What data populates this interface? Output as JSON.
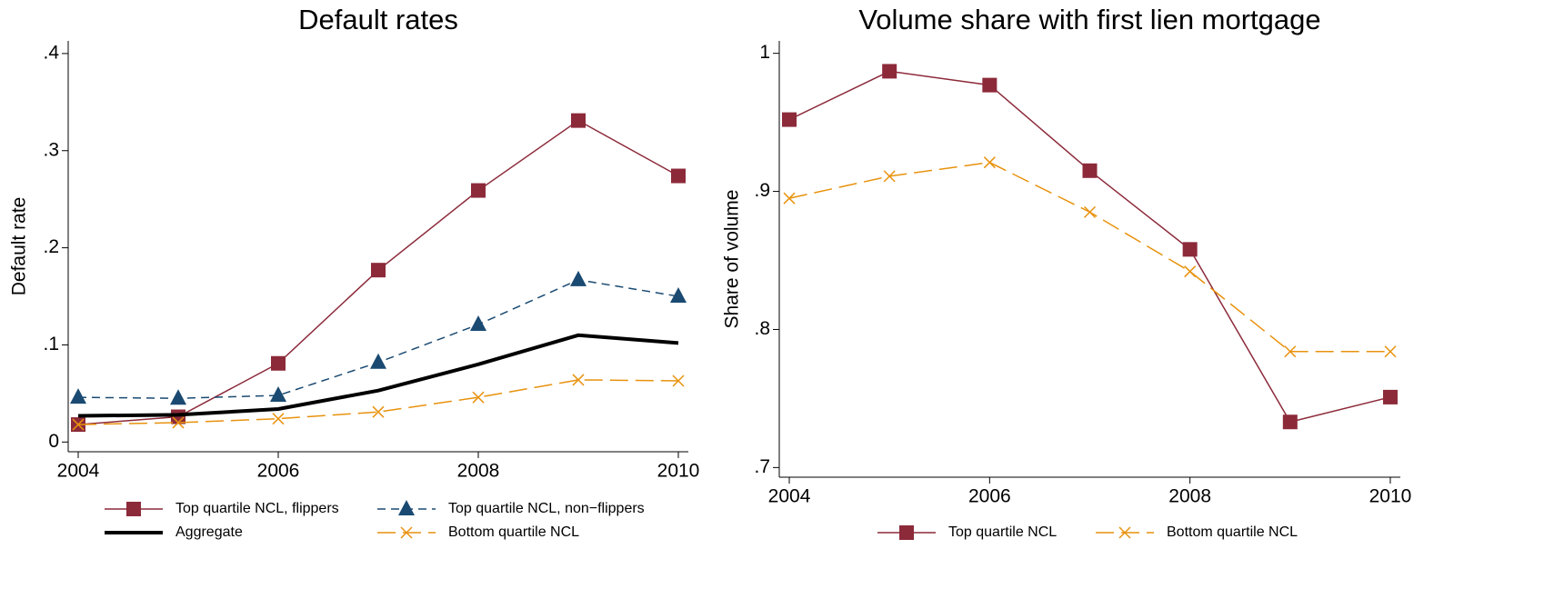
{
  "chart_data": [
    {
      "type": "line",
      "title": "Default rates",
      "ylabel": "Default rate",
      "x": [
        2004,
        2005,
        2006,
        2007,
        2008,
        2009,
        2010
      ],
      "xlim": [
        2003.9,
        2010.1
      ],
      "xticks": [
        2004,
        2006,
        2008,
        2010
      ],
      "ylim": [
        -0.01,
        0.413
      ],
      "yticks": [
        0,
        {
          "value": 0.1,
          "label": ".1"
        },
        {
          "value": 0.2,
          "label": ".2"
        },
        {
          "value": 0.3,
          "label": ".3"
        },
        {
          "value": 0.4,
          "label": ".4"
        }
      ],
      "series": [
        {
          "name": "Top quartile NCL, flippers",
          "color": "#8c2a3a",
          "marker": "square",
          "dash": "solid",
          "width": 1.5,
          "values": [
            0.018,
            0.026,
            0.081,
            0.177,
            0.259,
            0.331,
            0.274
          ]
        },
        {
          "name": "Top quartile NCL, non−flippers",
          "color": "#1a4a72",
          "marker": "triangle",
          "dash": "short",
          "width": 1.5,
          "values": [
            0.046,
            0.045,
            0.048,
            0.082,
            0.121,
            0.167,
            0.15
          ]
        },
        {
          "name": "Aggregate",
          "color": "#000000",
          "marker": "none",
          "dash": "solid",
          "width": 4,
          "values": [
            0.027,
            0.028,
            0.034,
            0.053,
            0.08,
            0.11,
            0.102
          ]
        },
        {
          "name": "Bottom quartile NCL",
          "color": "#e8920e",
          "marker": "x",
          "dash": "long",
          "width": 1.5,
          "values": [
            0.018,
            0.02,
            0.024,
            0.031,
            0.046,
            0.064,
            0.063
          ]
        }
      ]
    },
    {
      "type": "line",
      "title": "Volume share with first lien mortgage",
      "ylabel": "Share of volume",
      "x": [
        2004,
        2005,
        2006,
        2007,
        2008,
        2009,
        2010
      ],
      "xlim": [
        2003.9,
        2010.1
      ],
      "xticks": [
        2004,
        2006,
        2008,
        2010
      ],
      "ylim": [
        0.693,
        1.009
      ],
      "yticks": [
        {
          "value": 0.7,
          "label": ".7"
        },
        {
          "value": 0.8,
          "label": ".8"
        },
        {
          "value": 0.9,
          "label": ".9"
        },
        1
      ],
      "series": [
        {
          "name": "Top quartile NCL",
          "color": "#8c2a3a",
          "marker": "square",
          "dash": "solid",
          "width": 1.5,
          "values": [
            0.952,
            0.987,
            0.977,
            0.915,
            0.858,
            0.733,
            0.751
          ]
        },
        {
          "name": "Bottom quartile NCL",
          "color": "#e8920e",
          "marker": "x",
          "dash": "long",
          "width": 1.5,
          "values": [
            0.895,
            0.911,
            0.921,
            0.885,
            0.842,
            0.784,
            0.784
          ]
        }
      ]
    }
  ]
}
